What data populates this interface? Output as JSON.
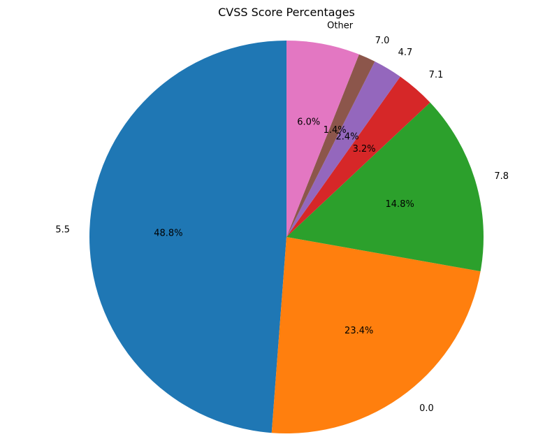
{
  "chart_data": {
    "type": "pie",
    "title": "CVSS Score Percentages",
    "start_angle_deg": 90,
    "direction": "counterclockwise",
    "slices": [
      {
        "label": "5.5",
        "value": 48.8,
        "pct_label": "48.8%",
        "color": "#1f77b4"
      },
      {
        "label": "0.0",
        "value": 23.4,
        "pct_label": "23.4%",
        "color": "#ff7f0e"
      },
      {
        "label": "7.8",
        "value": 14.8,
        "pct_label": "14.8%",
        "color": "#2ca02c"
      },
      {
        "label": "7.1",
        "value": 3.2,
        "pct_label": "3.2%",
        "color": "#d62728"
      },
      {
        "label": "4.7",
        "value": 2.4,
        "pct_label": "2.4%",
        "color": "#9467bd"
      },
      {
        "label": "7.0",
        "value": 1.4,
        "pct_label": "1.4%",
        "color": "#8c564b"
      },
      {
        "label": "Other",
        "value": 6.0,
        "pct_label": "6.0%",
        "color": "#e377c2"
      }
    ]
  }
}
